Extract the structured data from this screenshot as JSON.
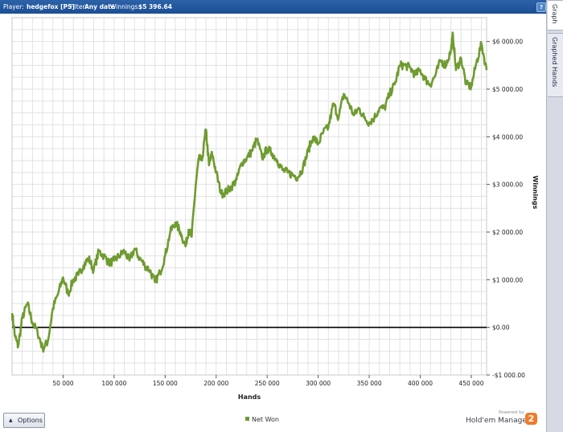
{
  "header": {
    "player_label": "Player:",
    "player_value": "hedgefox [PS]",
    "filter_label": "Filter:",
    "filter_value": "Any date",
    "winnings_label": "Winnings:",
    "winnings_value": "$5 396.64",
    "help_label": "?"
  },
  "side_tabs": {
    "graph": "Graph",
    "graphed_hands": "Graphed Hands"
  },
  "footer": {
    "options_label": "Options",
    "options_arrow": "▲",
    "legend_label": "Net Won",
    "powered_by": "Powered by",
    "brand": "Hold'em Manager",
    "logo": "2"
  },
  "colors": {
    "series": "#6f9b30",
    "header": "#2258a0",
    "grid": "#e2e2e2",
    "zero_line": "#000000",
    "logo": "#f07a2a"
  },
  "chart_data": {
    "type": "line",
    "xlabel": "Hands",
    "ylabel": "Winnings",
    "xlim": [
      0,
      465000
    ],
    "ylim": [
      -1000,
      6500
    ],
    "xticks": [
      50000,
      100000,
      150000,
      200000,
      250000,
      300000,
      350000,
      400000,
      450000
    ],
    "xtick_labels": [
      "50 000",
      "100 000",
      "150 000",
      "200 000",
      "250 000",
      "300 000",
      "350 000",
      "400 000",
      "450 000"
    ],
    "yticks": [
      6000,
      5000,
      4000,
      3000,
      2000,
      1000,
      0,
      -1000
    ],
    "ytick_labels": [
      "$6 000.00",
      "$5 000.00",
      "$4 000.00",
      "$3 000.00",
      "$2 000.00",
      "$1 000.00",
      "$0.00",
      "-$1 000.00"
    ],
    "grid": true,
    "legend_position": "bottom",
    "series": [
      {
        "name": "Net Won",
        "x": [
          0,
          3000,
          6000,
          10000,
          15000,
          20000,
          25000,
          30000,
          35000,
          40000,
          45000,
          50000,
          55000,
          60000,
          65000,
          70000,
          75000,
          80000,
          85000,
          90000,
          95000,
          100000,
          105000,
          110000,
          115000,
          120000,
          125000,
          130000,
          135000,
          140000,
          145000,
          150000,
          155000,
          160000,
          165000,
          170000,
          173000,
          176000,
          180000,
          183000,
          186000,
          190000,
          193000,
          196000,
          200000,
          205000,
          210000,
          215000,
          220000,
          225000,
          230000,
          235000,
          240000,
          245000,
          250000,
          255000,
          260000,
          265000,
          270000,
          275000,
          280000,
          285000,
          290000,
          295000,
          300000,
          305000,
          310000,
          315000,
          320000,
          325000,
          330000,
          335000,
          340000,
          345000,
          350000,
          355000,
          360000,
          365000,
          370000,
          375000,
          380000,
          385000,
          390000,
          395000,
          400000,
          405000,
          410000,
          415000,
          420000,
          425000,
          430000,
          432000,
          435000,
          440000,
          445000,
          450000,
          455000,
          460000,
          465000
        ],
        "y": [
          300,
          -200,
          -400,
          200,
          500,
          100,
          -100,
          -450,
          -300,
          400,
          700,
          1050,
          700,
          1000,
          1100,
          1300,
          1450,
          1200,
          1600,
          1500,
          1350,
          1400,
          1500,
          1600,
          1400,
          1650,
          1450,
          1300,
          1200,
          950,
          1150,
          1500,
          2000,
          2200,
          2000,
          1700,
          2050,
          1900,
          3000,
          3550,
          3500,
          4150,
          3400,
          3650,
          3250,
          2800,
          2850,
          2950,
          3100,
          3450,
          3550,
          3700,
          3950,
          3550,
          3750,
          3650,
          3500,
          3300,
          3250,
          3200,
          3150,
          3350,
          3700,
          4000,
          3850,
          4100,
          4200,
          4700,
          4400,
          4900,
          4700,
          4450,
          4600,
          4400,
          4300,
          4400,
          4600,
          4600,
          4900,
          5100,
          5500,
          5500,
          5450,
          5300,
          5400,
          5200,
          5100,
          5300,
          5600,
          5500,
          5800,
          6150,
          5400,
          5650,
          5100,
          5050,
          5550,
          5950,
          5400
        ]
      }
    ]
  }
}
